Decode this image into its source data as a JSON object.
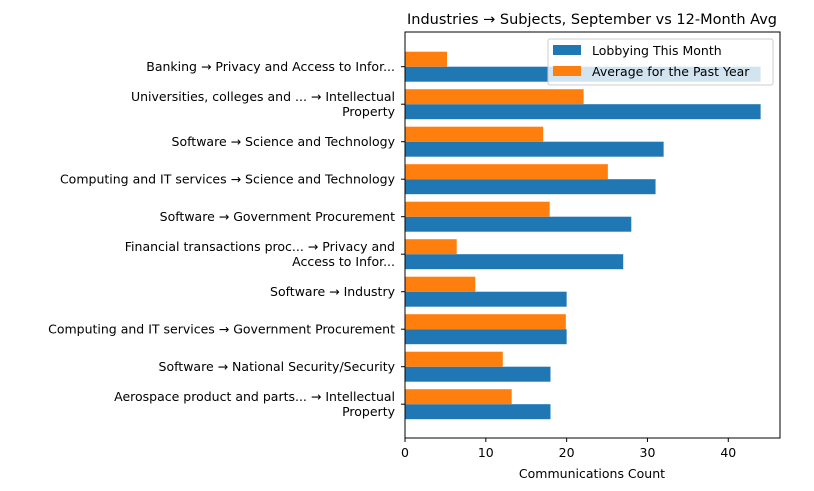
{
  "chart_data": {
    "type": "bar",
    "orientation": "horizontal",
    "title": "Industries → Subjects, September vs 12-Month Avg",
    "xlabel": "Communications Count",
    "ylabel": "",
    "xlim": [
      0,
      46.4
    ],
    "xticks": [
      "0",
      "10",
      "20",
      "30",
      "40"
    ],
    "grid": false,
    "legend_position": "top-right",
    "categories": [
      [
        "Banking → Privacy and Access to Infor..."
      ],
      [
        "Universities, colleges and ... → Intellectual",
        "Property"
      ],
      [
        "Software → Science and Technology"
      ],
      [
        "Computing and IT services → Science and Technology"
      ],
      [
        "Software → Government Procurement"
      ],
      [
        "Financial transactions proc... → Privacy and",
        "Access to Infor..."
      ],
      [
        "Software → Industry"
      ],
      [
        "Computing and IT services → Government Procurement"
      ],
      [
        "Software → National Security/Security"
      ],
      [
        "Aerospace product and parts... → Intellectual",
        "Property"
      ]
    ],
    "series": [
      {
        "name": "Lobbying This Month",
        "color": "#1f77b4",
        "values": [
          44,
          44,
          32,
          31,
          28,
          27,
          20,
          20,
          18,
          18
        ]
      },
      {
        "name": "Average for the Past Year",
        "color": "#ff7f0e",
        "values": [
          5.2,
          22.1,
          17.1,
          25.1,
          17.9,
          6.4,
          8.7,
          19.9,
          12.1,
          13.2
        ]
      }
    ]
  }
}
